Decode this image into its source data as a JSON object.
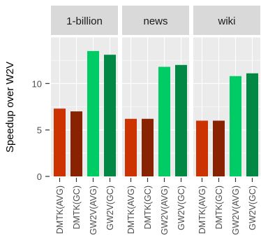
{
  "chart_data": {
    "type": "bar",
    "ylabel": "Speedup over W2V",
    "xlabel": "",
    "ylim": [
      0,
      15
    ],
    "yticks": [
      0,
      5,
      10
    ],
    "grid": true,
    "categories": [
      "DMTK(AVG)",
      "DMTK(GC)",
      "GW2V(AVG)",
      "GW2V(GC)"
    ],
    "category_colors": [
      "#cc3300",
      "#882200",
      "#00cc66",
      "#008844"
    ],
    "panels": [
      {
        "name": "1-billion",
        "values": [
          7.3,
          7.0,
          13.5,
          13.1
        ]
      },
      {
        "name": "news",
        "values": [
          6.2,
          6.2,
          11.8,
          12.0
        ]
      },
      {
        "name": "wiki",
        "values": [
          6.0,
          6.0,
          10.8,
          11.1
        ]
      }
    ]
  }
}
